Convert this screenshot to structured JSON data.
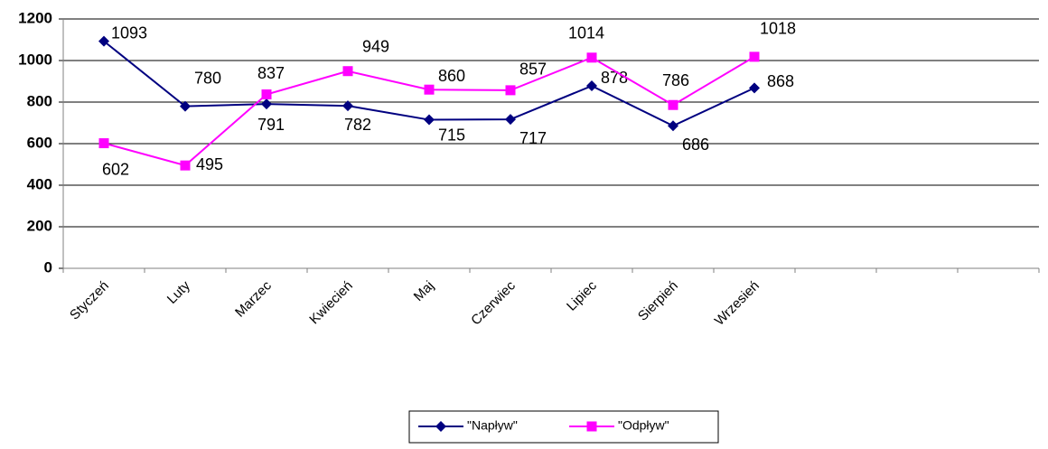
{
  "chart_data": {
    "type": "line",
    "categories": [
      "Styczeń",
      "Luty",
      "Marzec",
      "Kwiecień",
      "Maj",
      "Czerwiec",
      "Lipiec",
      "Sierpień",
      "Wrzesień",
      null,
      null,
      null
    ],
    "series": [
      {
        "name": "\"Napływ\"",
        "color": "#000080",
        "marker": "diamond",
        "values": [
          1093,
          780,
          791,
          782,
          715,
          717,
          878,
          686,
          868,
          null,
          null,
          null
        ]
      },
      {
        "name": "\"Odpływ\"",
        "color": "#ff00ff",
        "marker": "square",
        "values": [
          602,
          495,
          837,
          949,
          860,
          857,
          1014,
          786,
          1018,
          null,
          null,
          null
        ]
      }
    ],
    "ylim": [
      0,
      1200
    ],
    "yticks": [
      0,
      200,
      400,
      600,
      800,
      1000,
      1200
    ],
    "grid": true,
    "legend": "bottom"
  }
}
